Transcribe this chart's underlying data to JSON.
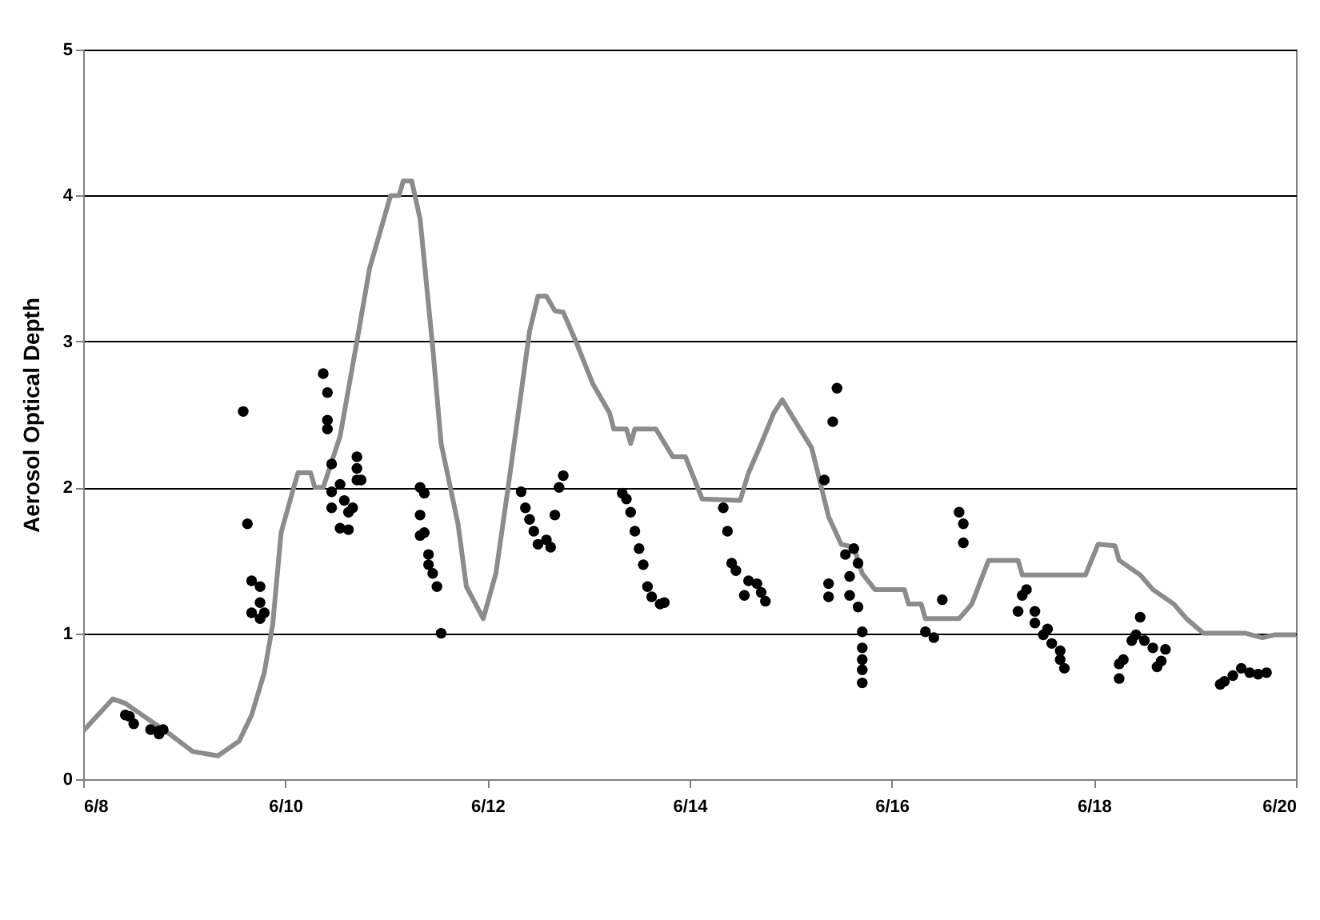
{
  "chart_data": {
    "type": "scatter",
    "ylabel": "Aerosol Optical Depth",
    "xlim": [
      "--06-08",
      "--06-20"
    ],
    "xticks": [
      {
        "value": "--06-08",
        "label": "6/8"
      },
      {
        "value": "--06-10",
        "label": "6/10"
      },
      {
        "value": "--06-12",
        "label": "6/12"
      },
      {
        "value": "--06-14",
        "label": "6/14"
      },
      {
        "value": "--06-16",
        "label": "6/16"
      },
      {
        "value": "--06-18",
        "label": "6/18"
      },
      {
        "value": "--06-20",
        "label": "6/20"
      }
    ],
    "ylim": [
      0,
      5
    ],
    "yticks": [
      0,
      1,
      2,
      3,
      4,
      5
    ],
    "grid": "y",
    "series": [
      {
        "type": "line",
        "color": "#8c8c8c",
        "marker": "none",
        "line_style": "solid",
        "x": [
          "--06-08T00:00",
          "--06-08T07:00",
          "--06-08T10:00",
          "--06-08T21:00",
          "--06-09T02:00",
          "--06-09T08:00",
          "--06-09T13:00",
          "--06-09T16:00",
          "--06-09T19:00",
          "--06-09T21:00",
          "--06-09T23:00",
          "--06-10T02:00",
          "--06-10T03:00",
          "--06-10T06:00",
          "--06-10T07:00",
          "--06-10T09:00",
          "--06-10T13:00",
          "--06-10T17:00",
          "--06-10T20:00",
          "--06-11T01:00",
          "--06-11T03:00",
          "--06-11T04:00",
          "--06-11T06:00",
          "--06-11T08:00",
          "--06-11T11:00",
          "--06-11T13:00",
          "--06-11T17:00",
          "--06-11T19:00",
          "--06-11T23:00",
          "--06-12T02:00",
          "--06-12T05:00",
          "--06-12T10:00",
          "--06-12T12:00",
          "--06-12T14:00",
          "--06-12T16:00",
          "--06-12T18:00",
          "--06-12T21:00",
          "--06-13T01:00",
          "--06-13T05:00",
          "--06-13T06:00",
          "--06-13T09:00",
          "--06-13T10:00",
          "--06-13T11:00",
          "--06-13T16:00",
          "--06-13T20:00",
          "--06-13T23:00",
          "--06-14T03:00",
          "--06-14T12:00",
          "--06-14T14:00",
          "--06-14T17:00",
          "--06-14T20:00",
          "--06-14T22:00",
          "--06-15T02:00",
          "--06-15T05:00",
          "--06-15T09:00",
          "--06-15T12:00",
          "--06-15T15:00",
          "--06-15T17:00",
          "--06-15T20:00",
          "--06-16T03:00",
          "--06-16T04:00",
          "--06-16T07:00",
          "--06-16T08:00",
          "--06-16T16:00",
          "--06-16T19:00",
          "--06-16T23:00",
          "--06-17T06:00",
          "--06-17T07:00",
          "--06-17T22:00",
          "--06-18T01:00",
          "--06-18T05:00",
          "--06-18T06:00",
          "--06-18T11:00",
          "--06-18T14:00",
          "--06-18T19:00",
          "--06-18T22:00",
          "--06-19T02:00",
          "--06-19T12:00",
          "--06-19T16:00",
          "--06-19T19:00",
          "--06-20T00:00"
        ],
        "values": [
          0.33,
          0.55,
          0.52,
          0.3,
          0.19,
          0.16,
          0.26,
          0.44,
          0.73,
          1.06,
          1.69,
          2.0,
          2.1,
          2.1,
          2.0,
          2.0,
          2.35,
          3.0,
          3.5,
          4.0,
          4.0,
          4.1,
          4.1,
          3.84,
          2.96,
          2.3,
          1.75,
          1.32,
          1.1,
          1.41,
          2.02,
          3.07,
          3.31,
          3.31,
          3.21,
          3.2,
          3.0,
          2.71,
          2.51,
          2.4,
          2.4,
          2.3,
          2.4,
          2.4,
          2.21,
          2.21,
          1.92,
          1.91,
          2.1,
          2.3,
          2.51,
          2.6,
          2.41,
          2.27,
          1.8,
          1.61,
          1.59,
          1.41,
          1.3,
          1.3,
          1.2,
          1.2,
          1.1,
          1.1,
          1.2,
          1.5,
          1.5,
          1.4,
          1.4,
          1.61,
          1.6,
          1.5,
          1.4,
          1.3,
          1.2,
          1.1,
          1.0,
          1.0,
          0.97,
          0.99,
          0.99
        ]
      },
      {
        "type": "scatter",
        "color": "#000000",
        "marker": "circle",
        "x": [
          "--06-08T10:00",
          "--06-08T11:00",
          "--06-08T12:00",
          "--06-08T16:00",
          "--06-08T18:00",
          "--06-08T19:00",
          "--06-08T18:00",
          "--06-09T14:00",
          "--06-09T15:00",
          "--06-09T16:00",
          "--06-09T16:00",
          "--06-09T18:00",
          "--06-09T18:00",
          "--06-09T18:00",
          "--06-09T19:00",
          "--06-10T09:00",
          "--06-10T10:00",
          "--06-10T10:00",
          "--06-10T10:00",
          "--06-10T11:00",
          "--06-10T11:00",
          "--06-10T11:00",
          "--06-10T13:00",
          "--06-10T13:00",
          "--06-10T14:00",
          "--06-10T15:00",
          "--06-10T15:00",
          "--06-10T16:00",
          "--06-10T17:00",
          "--06-10T17:00",
          "--06-10T17:00",
          "--06-10T18:00",
          "--06-11T08:00",
          "--06-11T09:00",
          "--06-11T08:00",
          "--06-11T08:00",
          "--06-11T09:00",
          "--06-11T10:00",
          "--06-11T10:00",
          "--06-11T11:00",
          "--06-11T12:00",
          "--06-11T13:00",
          "--06-12T08:00",
          "--06-12T09:00",
          "--06-12T10:00",
          "--06-12T11:00",
          "--06-12T12:00",
          "--06-12T14:00",
          "--06-12T15:00",
          "--06-12T16:00",
          "--06-12T17:00",
          "--06-12T18:00",
          "--06-13T08:00",
          "--06-13T09:00",
          "--06-13T10:00",
          "--06-13T11:00",
          "--06-13T12:00",
          "--06-13T13:00",
          "--06-13T14:00",
          "--06-13T15:00",
          "--06-13T17:00",
          "--06-13T18:00",
          "--06-14T08:00",
          "--06-14T09:00",
          "--06-14T10:00",
          "--06-14T11:00",
          "--06-14T13:00",
          "--06-14T14:00",
          "--06-14T16:00",
          "--06-14T17:00",
          "--06-14T18:00",
          "--06-15T11:00",
          "--06-15T10:00",
          "--06-15T08:00",
          "--06-15T09:00",
          "--06-15T09:00",
          "--06-15T13:00",
          "--06-15T15:00",
          "--06-15T14:00",
          "--06-15T16:00",
          "--06-15T14:00",
          "--06-15T16:00",
          "--06-15T17:00",
          "--06-15T17:00",
          "--06-15T17:00",
          "--06-15T17:00",
          "--06-15T17:00",
          "--06-16T08:00",
          "--06-16T10:00",
          "--06-16T12:00",
          "--06-16T16:00",
          "--06-16T17:00",
          "--06-16T17:00",
          "--06-17T06:00",
          "--06-17T07:00",
          "--06-17T08:00",
          "--06-17T10:00",
          "--06-17T10:00",
          "--06-17T12:00",
          "--06-17T13:00",
          "--06-17T14:00",
          "--06-17T16:00",
          "--06-17T16:00",
          "--06-17T17:00",
          "--06-18T06:00",
          "--06-18T06:00",
          "--06-18T07:00",
          "--06-18T09:00",
          "--06-18T10:00",
          "--06-18T11:00",
          "--06-18T12:00",
          "--06-18T14:00",
          "--06-18T15:00",
          "--06-18T16:00",
          "--06-18T17:00",
          "--06-19T06:00",
          "--06-19T07:00",
          "--06-19T09:00",
          "--06-19T11:00",
          "--06-19T13:00",
          "--06-19T15:00",
          "--06-19T17:00"
        ],
        "values": [
          0.44,
          0.43,
          0.38,
          0.34,
          0.33,
          0.34,
          0.31,
          2.52,
          1.75,
          1.36,
          1.14,
          1.32,
          1.21,
          1.1,
          1.14,
          2.78,
          2.65,
          2.46,
          2.4,
          2.16,
          1.97,
          1.86,
          1.72,
          2.02,
          1.91,
          1.83,
          1.71,
          1.86,
          2.05,
          2.13,
          2.21,
          2.05,
          2.0,
          1.96,
          1.81,
          1.67,
          1.69,
          1.54,
          1.47,
          1.41,
          1.32,
          1.0,
          1.97,
          1.86,
          1.78,
          1.7,
          1.61,
          1.64,
          1.59,
          1.81,
          2.0,
          2.08,
          1.96,
          1.92,
          1.83,
          1.7,
          1.58,
          1.47,
          1.32,
          1.25,
          1.2,
          1.21,
          1.86,
          1.7,
          1.48,
          1.43,
          1.26,
          1.36,
          1.34,
          1.28,
          1.22,
          2.68,
          2.45,
          2.05,
          1.34,
          1.25,
          1.54,
          1.58,
          1.39,
          1.48,
          1.26,
          1.18,
          1.01,
          0.9,
          0.82,
          0.75,
          0.66,
          1.01,
          0.97,
          1.23,
          1.83,
          1.75,
          1.62,
          1.15,
          1.26,
          1.3,
          1.15,
          1.07,
          0.99,
          1.03,
          0.93,
          0.88,
          0.82,
          0.76,
          0.69,
          0.79,
          0.82,
          0.95,
          0.99,
          1.11,
          0.95,
          0.9,
          0.77,
          0.81,
          0.89,
          0.65,
          0.67,
          0.71,
          0.76,
          0.73,
          0.72,
          0.73
        ]
      }
    ]
  }
}
